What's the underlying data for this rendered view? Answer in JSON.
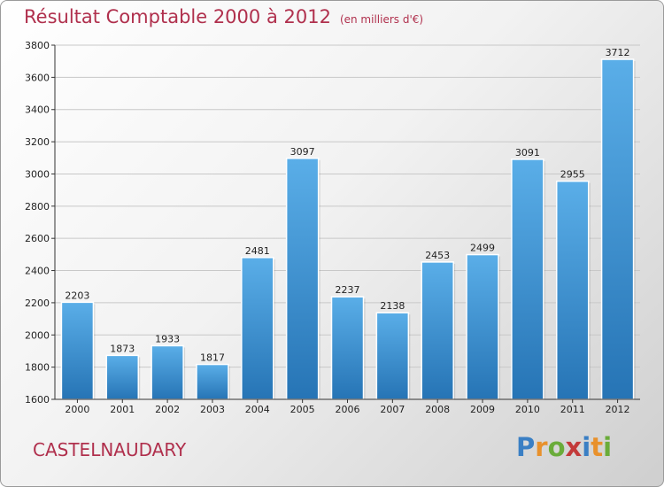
{
  "header": {
    "title": "Résultat Comptable 2000 à 2012",
    "unit": "(en milliers d'€)"
  },
  "footer": {
    "commune": "CASTELNAUDARY",
    "logo_letters": [
      "P",
      "r",
      "o",
      "x",
      "i",
      "t",
      "i"
    ],
    "logo_colors": [
      "#3a7fc4",
      "#e8912c",
      "#6aac3a",
      "#c33a3a",
      "#3a7fc4",
      "#e8912c",
      "#6aac3a"
    ]
  },
  "colors": {
    "bar_top": "#5aaee8",
    "bar_bottom": "#2674b5",
    "text": "#b0304d"
  },
  "chart_data": {
    "type": "bar",
    "categories": [
      "2000",
      "2001",
      "2002",
      "2003",
      "2004",
      "2005",
      "2006",
      "2007",
      "2008",
      "2009",
      "2010",
      "2011",
      "2012"
    ],
    "values": [
      2203,
      1873,
      1933,
      1817,
      2481,
      3097,
      2237,
      2138,
      2453,
      2499,
      3091,
      2955,
      3712
    ],
    "ylim": [
      1600,
      3800
    ],
    "yticks": [
      1600,
      1800,
      2000,
      2200,
      2400,
      2600,
      2800,
      3000,
      3200,
      3400,
      3600,
      3800
    ],
    "grid": true,
    "title": "Résultat Comptable 2000 à 2012",
    "xlabel": "",
    "ylabel": ""
  }
}
